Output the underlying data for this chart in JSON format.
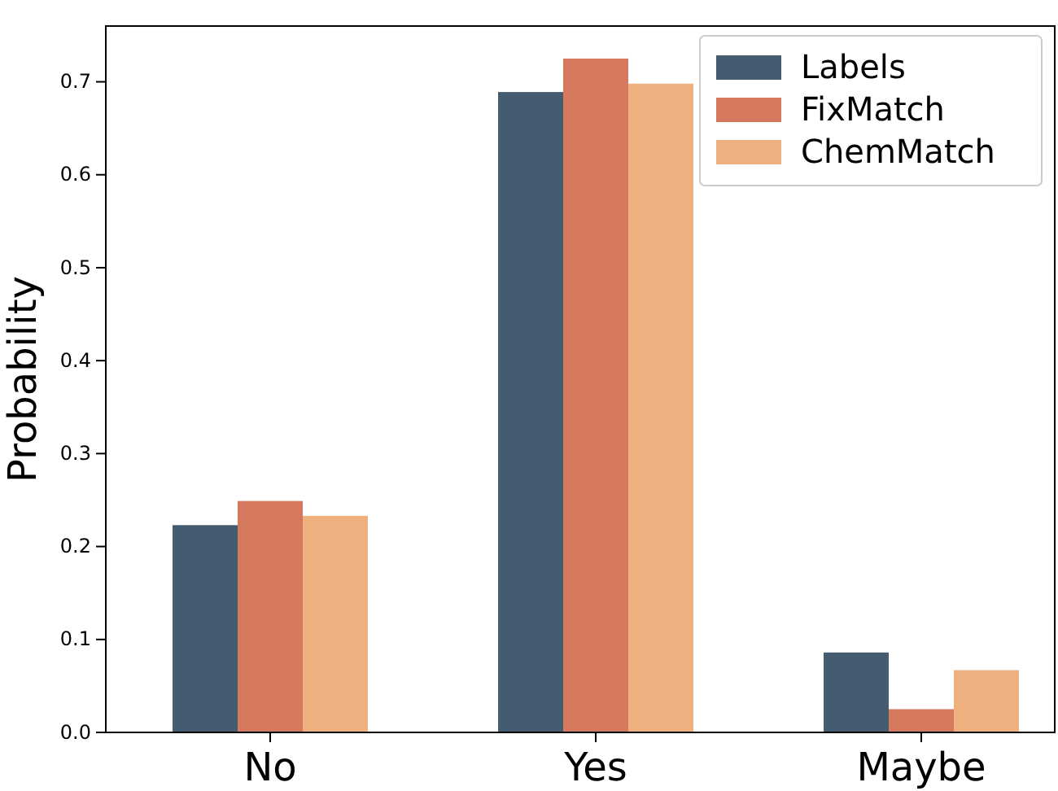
{
  "chart_data": {
    "type": "bar",
    "ylabel": "Probability",
    "categories": [
      "No",
      "Yes",
      "Maybe"
    ],
    "series": [
      {
        "name": "Labels",
        "color": "#445b70",
        "values": [
          0.223,
          0.689,
          0.086
        ]
      },
      {
        "name": "FixMatch",
        "color": "#d4795d",
        "values": [
          0.249,
          0.725,
          0.025
        ]
      },
      {
        "name": "ChemMatch",
        "color": "#eeb07f",
        "values": [
          0.233,
          0.698,
          0.067
        ]
      }
    ],
    "ylim": [
      0,
      0.76
    ],
    "yticks": [
      {
        "value": 0,
        "label": "0.0"
      },
      {
        "value": 0.1,
        "label": "0.1"
      },
      {
        "value": 0.2,
        "label": "0.2"
      },
      {
        "value": 0.3,
        "label": "0.3"
      },
      {
        "value": 0.4,
        "label": "0.4"
      },
      {
        "value": 0.5,
        "label": "0.5"
      },
      {
        "value": 0.6,
        "label": "0.6"
      },
      {
        "value": 0.7,
        "label": "0.7"
      }
    ],
    "grid": false,
    "legend": "top right"
  }
}
